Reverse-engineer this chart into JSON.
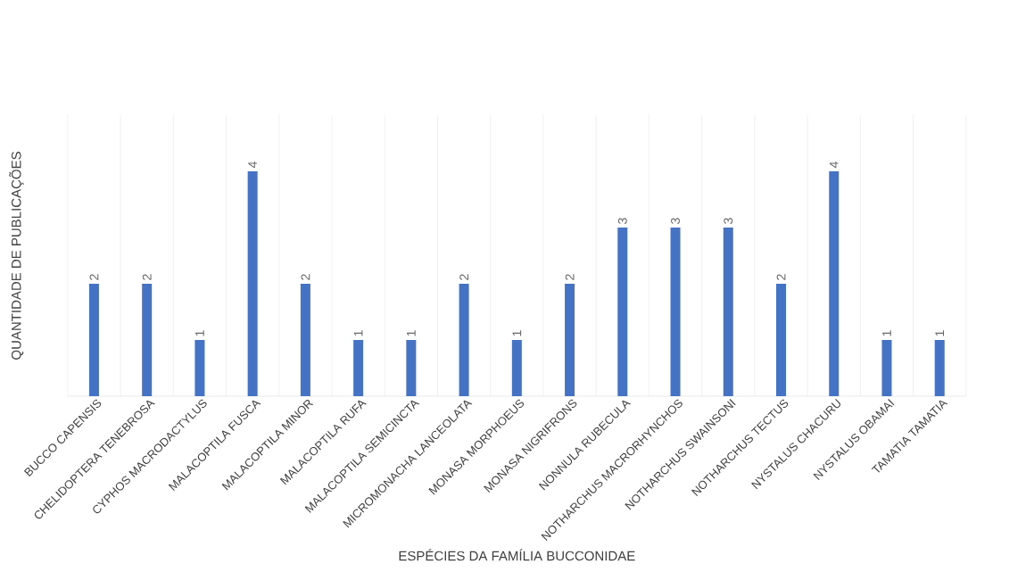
{
  "chart_data": {
    "type": "bar",
    "xlabel": "ESPÉCIES DA FAMÍLIA BUCCONIDAE",
    "ylabel": "QUANTIDADE DE PUBLICAÇÕES",
    "categories": [
      "BUCCO CAPENSIS",
      "CHELIDOPTERA TENEBROSA",
      "CYPHOS MACRODACTYLUS",
      "MALACOPTILA FUSCA",
      "MALACOPTILA MINOR",
      "MALACOPTILA RUFA",
      "MALACOPTILA SEMICINCTA",
      "MICROMONACHA LANCEOLATA",
      "MONASA MORPHOEUS",
      "MONASA NIGRIFRONS",
      "NONNULA RUBECULA",
      "NOTHARCHUS MACRORHYNCHOS",
      "NOTHARCHUS SWAINSONI",
      "NOTHARCHUS TECTUS",
      "NYSTALUS CHACURU",
      "NYSTALUS OBAMAI",
      "TAMATIA TAMATIA"
    ],
    "values": [
      2,
      2,
      1,
      4,
      2,
      1,
      1,
      2,
      1,
      2,
      3,
      3,
      3,
      2,
      4,
      1,
      1
    ],
    "color": "#4472c4",
    "ylim": [
      0,
      5
    ],
    "tick_labels": "x",
    "data_labels": true,
    "grid": "x"
  }
}
